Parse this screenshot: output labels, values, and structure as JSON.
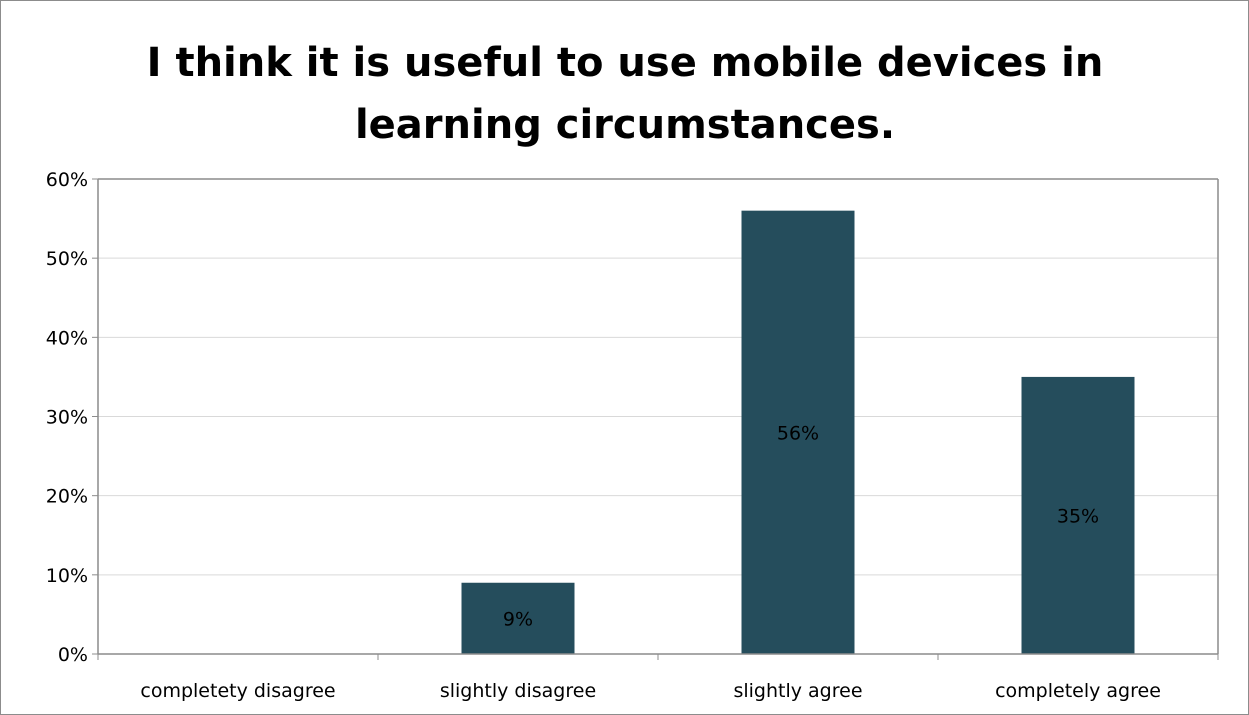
{
  "chart_data": {
    "type": "bar",
    "title_lines": [
      "I think it is useful to use mobile devices in",
      "learning circumstances."
    ],
    "categories": [
      "completety disagree",
      "slightly disagree",
      "slightly agree",
      "completely agree"
    ],
    "values": [
      0,
      9,
      56,
      35
    ],
    "data_labels": [
      "",
      "9%",
      "56%",
      "35%"
    ],
    "y_ticks": [
      "0%",
      "10%",
      "20%",
      "30%",
      "40%",
      "50%",
      "60%"
    ],
    "ylim": [
      0,
      60
    ],
    "grid": true,
    "legend": "none",
    "colors": {
      "bar": "#254d5c",
      "grid": "#d9d9d9",
      "axis": "#8c8c8c"
    }
  }
}
